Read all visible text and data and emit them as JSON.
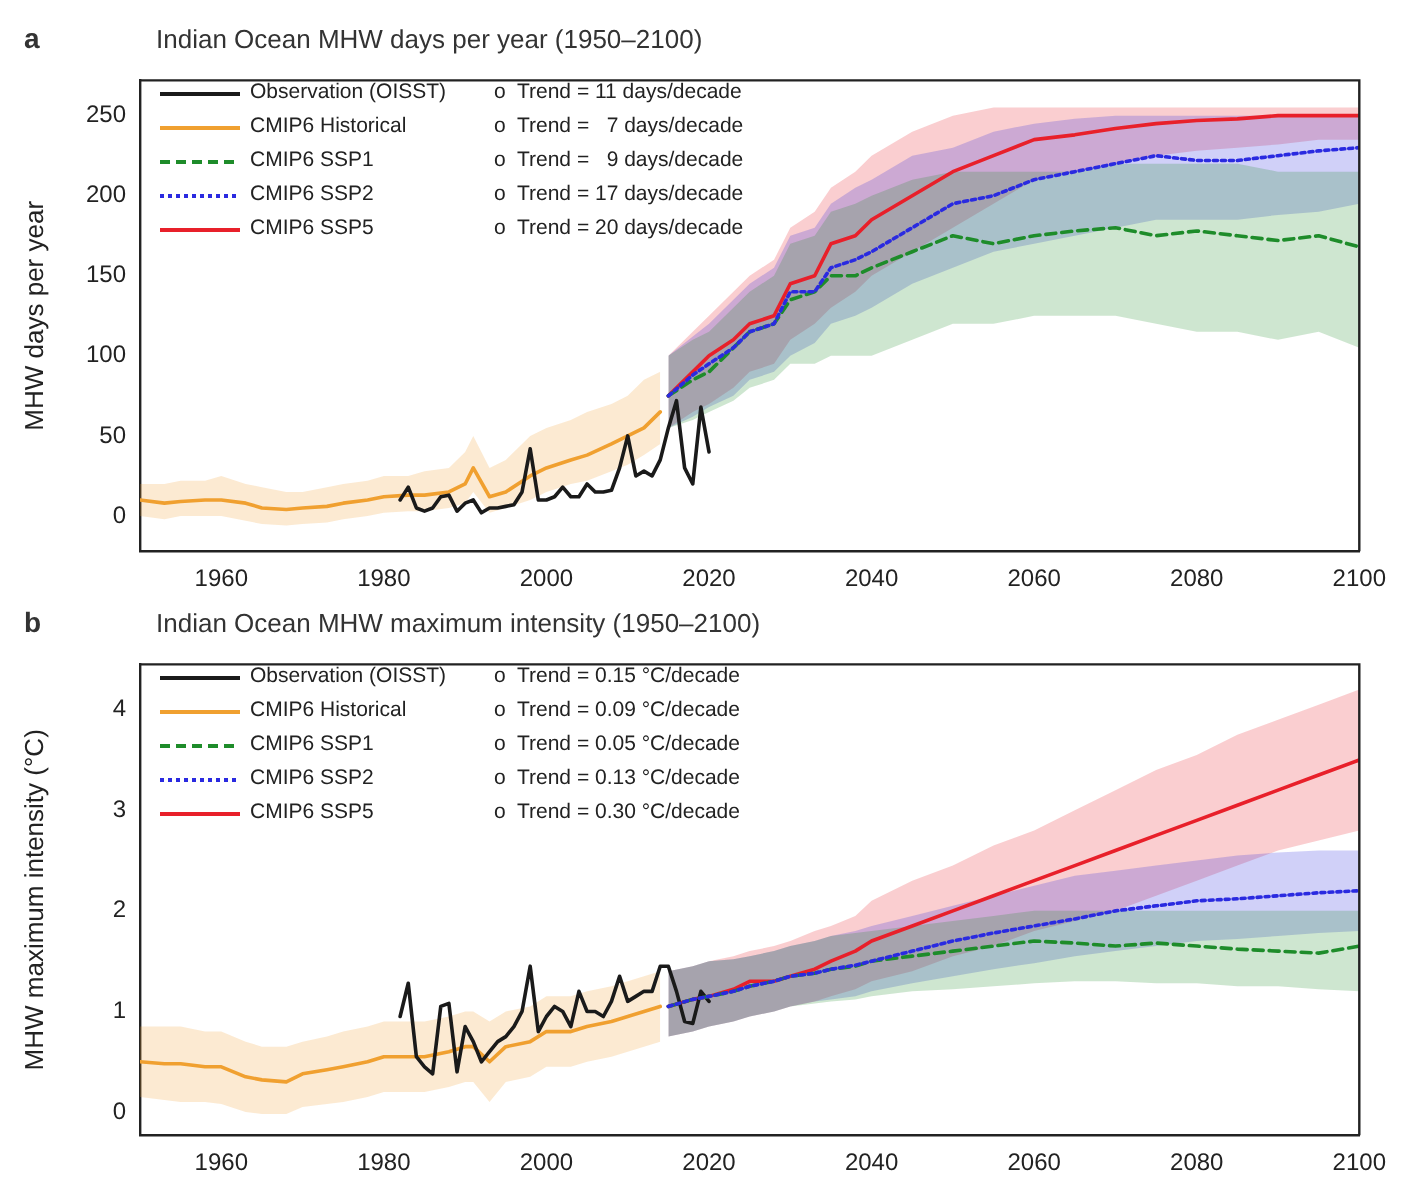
{
  "chart_data": [
    {
      "type": "line",
      "title": "Indian Ocean MHW days per year (1950–2100)",
      "ylabel": "MHW days per year",
      "xlim": [
        1950,
        2100
      ],
      "xticks": [
        1960,
        1980,
        2000,
        2020,
        2040,
        2060,
        2080,
        2100
      ],
      "ylim": [
        -22,
        272
      ],
      "yticks": [
        0,
        50,
        100,
        150,
        200,
        250
      ],
      "grid": false,
      "legend": "top left",
      "marker": "none",
      "annotations": [
        "a",
        "o  Trend = 11 days/decade",
        "o  Trend =   7 days/decade",
        "o  Trend =   9 days/decade",
        "o  Trend = 17 days/decade",
        "o  Trend = 20 days/decade"
      ],
      "series": [
        {
          "name": "Observation (OISST)",
          "color": "#1a1a1a",
          "line_style": "solid",
          "x": [
            1982,
            1983,
            1984,
            1985,
            1986,
            1987,
            1988,
            1989,
            1990,
            1991,
            1992,
            1993,
            1994,
            1995,
            1996,
            1997,
            1998,
            1999,
            2000,
            2001,
            2002,
            2003,
            2004,
            2005,
            2006,
            2007,
            2008,
            2009,
            2010,
            2011,
            2012,
            2013,
            2014,
            2015,
            2016,
            2017,
            2018,
            2019,
            2020
          ],
          "values": [
            10,
            18,
            5,
            3,
            5,
            12,
            13,
            3,
            8,
            10,
            2,
            5,
            5,
            6,
            7,
            15,
            42,
            10,
            10,
            12,
            18,
            12,
            12,
            20,
            15,
            15,
            16,
            30,
            50,
            25,
            28,
            25,
            35,
            55,
            72,
            30,
            20,
            68,
            40
          ]
        },
        {
          "name": "CMIP6 Historical",
          "color": "#f0a030",
          "line_style": "solid",
          "x": [
            1950,
            1953,
            1955,
            1958,
            1960,
            1963,
            1965,
            1968,
            1970,
            1973,
            1975,
            1978,
            1980,
            1983,
            1985,
            1988,
            1990,
            1991,
            1993,
            1995,
            1998,
            2000,
            2003,
            2005,
            2008,
            2010,
            2012,
            2014
          ],
          "values": [
            10,
            8,
            9,
            10,
            10,
            8,
            5,
            4,
            5,
            6,
            8,
            10,
            12,
            13,
            13,
            15,
            20,
            30,
            12,
            15,
            25,
            30,
            35,
            38,
            45,
            50,
            55,
            65
          ],
          "lower": [
            0,
            -2,
            0,
            0,
            0,
            -3,
            -5,
            -6,
            -5,
            -4,
            -2,
            0,
            2,
            3,
            3,
            5,
            8,
            15,
            2,
            5,
            10,
            15,
            20,
            22,
            28,
            32,
            38,
            45
          ],
          "upper": [
            20,
            20,
            22,
            22,
            25,
            20,
            18,
            15,
            15,
            18,
            20,
            22,
            25,
            25,
            28,
            30,
            40,
            50,
            30,
            35,
            50,
            55,
            60,
            65,
            70,
            75,
            85,
            90
          ]
        },
        {
          "name": "CMIP6 SSP1",
          "color": "#1e8c2a",
          "line_style": "dashed",
          "x": [
            2015,
            2018,
            2020,
            2023,
            2025,
            2028,
            2030,
            2033,
            2035,
            2038,
            2040,
            2045,
            2050,
            2055,
            2060,
            2065,
            2070,
            2075,
            2080,
            2085,
            2090,
            2095,
            2100
          ],
          "values": [
            75,
            85,
            90,
            105,
            115,
            120,
            135,
            140,
            150,
            150,
            155,
            165,
            175,
            170,
            175,
            178,
            180,
            175,
            178,
            175,
            172,
            175,
            168
          ],
          "lower": [
            55,
            60,
            65,
            72,
            80,
            85,
            95,
            95,
            100,
            100,
            100,
            110,
            120,
            120,
            125,
            125,
            125,
            120,
            115,
            115,
            110,
            115,
            105
          ],
          "upper": [
            100,
            110,
            115,
            130,
            140,
            150,
            170,
            175,
            190,
            195,
            200,
            210,
            215,
            215,
            215,
            215,
            220,
            220,
            220,
            220,
            215,
            215,
            215
          ]
        },
        {
          "name": "CMIP6 SSP2",
          "color": "#2a2ae0",
          "line_style": "dotted",
          "x": [
            2015,
            2018,
            2020,
            2023,
            2025,
            2028,
            2030,
            2033,
            2035,
            2038,
            2040,
            2045,
            2050,
            2055,
            2060,
            2065,
            2070,
            2075,
            2080,
            2085,
            2090,
            2095,
            2100
          ],
          "values": [
            75,
            88,
            95,
            105,
            115,
            120,
            140,
            140,
            155,
            160,
            165,
            180,
            195,
            200,
            210,
            215,
            220,
            225,
            222,
            222,
            225,
            228,
            230
          ],
          "lower": [
            55,
            62,
            68,
            75,
            85,
            90,
            100,
            108,
            120,
            125,
            130,
            145,
            155,
            165,
            170,
            175,
            180,
            185,
            185,
            185,
            188,
            190,
            195
          ],
          "upper": [
            100,
            112,
            120,
            135,
            145,
            155,
            175,
            180,
            195,
            205,
            210,
            225,
            230,
            240,
            245,
            248,
            250,
            250,
            250,
            250,
            250,
            250,
            250
          ]
        },
        {
          "name": "CMIP6 SSP5",
          "color": "#e8202a",
          "line_style": "solid",
          "x": [
            2015,
            2018,
            2020,
            2023,
            2025,
            2028,
            2030,
            2033,
            2035,
            2038,
            2040,
            2045,
            2050,
            2055,
            2060,
            2065,
            2070,
            2075,
            2080,
            2085,
            2090,
            2095,
            2100
          ],
          "values": [
            75,
            90,
            100,
            110,
            120,
            125,
            145,
            150,
            170,
            175,
            185,
            200,
            215,
            225,
            235,
            238,
            242,
            245,
            247,
            248,
            250,
            250,
            250
          ],
          "lower": [
            55,
            65,
            70,
            80,
            90,
            95,
            110,
            120,
            130,
            140,
            150,
            165,
            180,
            195,
            210,
            215,
            220,
            225,
            228,
            230,
            232,
            235,
            235
          ],
          "upper": [
            100,
            115,
            125,
            140,
            150,
            160,
            180,
            190,
            205,
            215,
            225,
            240,
            250,
            255,
            255,
            255,
            255,
            255,
            255,
            255,
            255,
            255,
            255
          ]
        }
      ]
    },
    {
      "type": "line",
      "title": "Indian Ocean MHW maximum intensity (1950–2100)",
      "ylabel": "MHW maximum intensity (°C)",
      "xlim": [
        1950,
        2100
      ],
      "xticks": [
        1960,
        1980,
        2000,
        2020,
        2040,
        2060,
        2080,
        2100
      ],
      "ylim": [
        -0.23,
        4.45
      ],
      "yticks": [
        0,
        1,
        2,
        3,
        4
      ],
      "grid": false,
      "legend": "top left",
      "marker": "none",
      "annotations": [
        "b",
        "o  Trend = 0.15 °C/decade",
        "o  Trend = 0.09 °C/decade",
        "o  Trend = 0.05 °C/decade",
        "o  Trend = 0.13 °C/decade",
        "o  Trend = 0.30 °C/decade"
      ],
      "series": [
        {
          "name": "Observation (OISST)",
          "color": "#1a1a1a",
          "line_style": "solid",
          "x": [
            1982,
            1983,
            1984,
            1985,
            1986,
            1987,
            1988,
            1989,
            1990,
            1991,
            1992,
            1993,
            1994,
            1995,
            1996,
            1997,
            1998,
            1999,
            2000,
            2001,
            2002,
            2003,
            2004,
            2005,
            2006,
            2007,
            2008,
            2009,
            2010,
            2011,
            2012,
            2013,
            2014,
            2015,
            2016,
            2017,
            2018,
            2019,
            2020
          ],
          "values": [
            0.95,
            1.28,
            0.55,
            0.45,
            0.38,
            1.05,
            1.08,
            0.4,
            0.85,
            0.7,
            0.5,
            0.6,
            0.7,
            0.75,
            0.85,
            1.0,
            1.45,
            0.8,
            0.95,
            1.05,
            1.0,
            0.85,
            1.2,
            1.0,
            1.0,
            0.95,
            1.1,
            1.35,
            1.1,
            1.15,
            1.2,
            1.2,
            1.45,
            1.45,
            1.2,
            0.9,
            0.88,
            1.2,
            1.1
          ]
        },
        {
          "name": "CMIP6 Historical",
          "color": "#f0a030",
          "line_style": "solid",
          "x": [
            1950,
            1953,
            1955,
            1958,
            1960,
            1963,
            1965,
            1968,
            1970,
            1973,
            1975,
            1978,
            1980,
            1983,
            1985,
            1988,
            1990,
            1991,
            1993,
            1995,
            1998,
            2000,
            2003,
            2005,
            2008,
            2010,
            2012,
            2014
          ],
          "values": [
            0.5,
            0.48,
            0.48,
            0.45,
            0.45,
            0.35,
            0.32,
            0.3,
            0.38,
            0.42,
            0.45,
            0.5,
            0.55,
            0.55,
            0.55,
            0.6,
            0.65,
            0.65,
            0.5,
            0.65,
            0.7,
            0.8,
            0.8,
            0.85,
            0.9,
            0.95,
            1.0,
            1.05
          ],
          "lower": [
            0.15,
            0.12,
            0.1,
            0.1,
            0.08,
            0.0,
            -0.02,
            -0.02,
            0.05,
            0.08,
            0.1,
            0.15,
            0.2,
            0.2,
            0.2,
            0.25,
            0.3,
            0.3,
            0.1,
            0.3,
            0.35,
            0.45,
            0.45,
            0.5,
            0.55,
            0.6,
            0.65,
            0.7
          ],
          "upper": [
            0.85,
            0.85,
            0.85,
            0.8,
            0.8,
            0.7,
            0.65,
            0.65,
            0.7,
            0.75,
            0.8,
            0.85,
            0.9,
            0.9,
            0.9,
            0.95,
            1.0,
            1.0,
            0.9,
            1.0,
            1.05,
            1.15,
            1.15,
            1.2,
            1.25,
            1.3,
            1.35,
            1.4
          ]
        },
        {
          "name": "CMIP6 SSP1",
          "color": "#1e8c2a",
          "line_style": "dashed",
          "x": [
            2015,
            2018,
            2020,
            2023,
            2025,
            2028,
            2030,
            2033,
            2035,
            2038,
            2040,
            2045,
            2050,
            2055,
            2060,
            2065,
            2070,
            2075,
            2080,
            2085,
            2090,
            2095,
            2100
          ],
          "values": [
            1.05,
            1.12,
            1.15,
            1.2,
            1.25,
            1.3,
            1.35,
            1.38,
            1.42,
            1.45,
            1.5,
            1.55,
            1.6,
            1.65,
            1.7,
            1.68,
            1.65,
            1.68,
            1.65,
            1.62,
            1.6,
            1.58,
            1.65
          ],
          "lower": [
            0.75,
            0.8,
            0.85,
            0.9,
            0.95,
            1.0,
            1.05,
            1.08,
            1.1,
            1.12,
            1.15,
            1.2,
            1.22,
            1.25,
            1.28,
            1.3,
            1.3,
            1.28,
            1.28,
            1.25,
            1.25,
            1.22,
            1.2
          ],
          "upper": [
            1.4,
            1.45,
            1.5,
            1.52,
            1.55,
            1.6,
            1.65,
            1.7,
            1.75,
            1.78,
            1.8,
            1.85,
            1.9,
            1.95,
            2.0,
            2.0,
            2.0,
            2.0,
            2.0,
            2.0,
            2.0,
            2.0,
            2.0
          ]
        },
        {
          "name": "CMIP6 SSP2",
          "color": "#2a2ae0",
          "line_style": "dotted",
          "x": [
            2015,
            2018,
            2020,
            2023,
            2025,
            2028,
            2030,
            2033,
            2035,
            2038,
            2040,
            2045,
            2050,
            2055,
            2060,
            2065,
            2070,
            2075,
            2080,
            2085,
            2090,
            2095,
            2100
          ],
          "values": [
            1.05,
            1.12,
            1.15,
            1.2,
            1.25,
            1.3,
            1.35,
            1.38,
            1.42,
            1.46,
            1.5,
            1.6,
            1.7,
            1.78,
            1.85,
            1.92,
            2.0,
            2.05,
            2.1,
            2.12,
            2.15,
            2.18,
            2.2
          ],
          "lower": [
            0.75,
            0.8,
            0.85,
            0.9,
            0.95,
            1.0,
            1.05,
            1.1,
            1.12,
            1.15,
            1.2,
            1.28,
            1.35,
            1.42,
            1.48,
            1.55,
            1.6,
            1.65,
            1.7,
            1.72,
            1.75,
            1.78,
            1.8
          ],
          "upper": [
            1.4,
            1.45,
            1.5,
            1.52,
            1.55,
            1.6,
            1.65,
            1.7,
            1.75,
            1.8,
            1.85,
            1.95,
            2.05,
            2.15,
            2.25,
            2.35,
            2.4,
            2.45,
            2.5,
            2.55,
            2.58,
            2.6,
            2.6
          ]
        },
        {
          "name": "CMIP6 SSP5",
          "color": "#e8202a",
          "line_style": "solid",
          "x": [
            2015,
            2018,
            2020,
            2023,
            2025,
            2028,
            2030,
            2033,
            2035,
            2038,
            2040,
            2045,
            2050,
            2055,
            2060,
            2065,
            2070,
            2075,
            2080,
            2085,
            2090,
            2095,
            2100
          ],
          "values": [
            1.05,
            1.12,
            1.15,
            1.22,
            1.3,
            1.3,
            1.35,
            1.42,
            1.5,
            1.6,
            1.7,
            1.85,
            2.0,
            2.15,
            2.3,
            2.45,
            2.6,
            2.75,
            2.9,
            3.05,
            3.2,
            3.35,
            3.5
          ],
          "lower": [
            0.75,
            0.8,
            0.85,
            0.9,
            0.95,
            1.0,
            1.05,
            1.1,
            1.15,
            1.22,
            1.3,
            1.4,
            1.55,
            1.65,
            1.8,
            1.9,
            2.0,
            2.15,
            2.3,
            2.45,
            2.6,
            2.7,
            2.8
          ],
          "upper": [
            1.4,
            1.45,
            1.5,
            1.55,
            1.6,
            1.65,
            1.7,
            1.8,
            1.85,
            1.95,
            2.1,
            2.3,
            2.45,
            2.65,
            2.8,
            3.0,
            3.2,
            3.4,
            3.55,
            3.75,
            3.9,
            4.05,
            4.2
          ]
        }
      ]
    }
  ]
}
